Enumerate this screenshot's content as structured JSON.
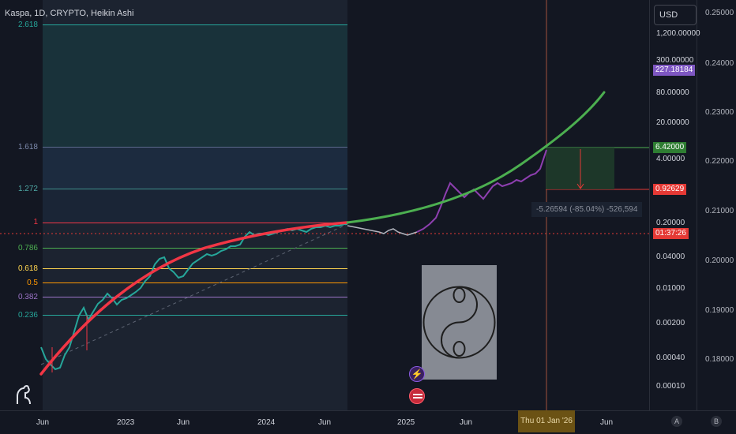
{
  "header": {
    "title": "Kaspa, 1D, CRYPTO, Heikin Ashi"
  },
  "currency_button": {
    "label": "USD"
  },
  "fib_levels": [
    {
      "label": "2.618",
      "color": "#26a69a"
    },
    {
      "label": "1.618",
      "color": "#5d6a8c"
    },
    {
      "label": "1.272",
      "color": "#3f8e8a"
    },
    {
      "label": "1",
      "color": "#f23645"
    },
    {
      "label": "0.786",
      "color": "#4caf50"
    },
    {
      "label": "0.618",
      "color": "#ffd54f"
    },
    {
      "label": "0.5",
      "color": "#ff9800"
    },
    {
      "label": "0.382",
      "color": "#9c74c8"
    },
    {
      "label": "0.236",
      "color": "#26a69a"
    }
  ],
  "left_price_scale": [
    "1,200.00000",
    "300.00000",
    "80.00000",
    "20.00000",
    "4.00000",
    "0.20000",
    "0.04000",
    "0.01000",
    "0.00200",
    "0.00040",
    "0.00010"
  ],
  "right_price_scale": [
    "0.25000",
    "0.24000",
    "0.23000",
    "0.22000",
    "0.21000",
    "0.20000",
    "0.19000",
    "0.18000"
  ],
  "price_badges": {
    "purple": {
      "text": "227.18184",
      "color": "#7e57c2"
    },
    "green": {
      "text": "6.42000",
      "color": "#2e7d32"
    },
    "red1": {
      "text": "0.92629",
      "color": "#e53935"
    },
    "red2": {
      "text": "01:37:26",
      "color": "#e53935"
    }
  },
  "position_tool": {
    "text": "-5.26594 (-85.04%) -526,594"
  },
  "time_axis": {
    "ticks": [
      "Jun",
      "2023",
      "Jun",
      "2024",
      "Jun",
      "2025",
      "Jun",
      "Jun"
    ],
    "crosshair_date": "Thu 01 Jan '26"
  },
  "scale_buttons": {
    "a": "A",
    "b": "B"
  },
  "icons": {
    "logo": "tradingview-dino-icon",
    "flash": "lightning-icon",
    "flag": "us-flag-icon",
    "yinyang": "yin-yang-icon"
  }
}
